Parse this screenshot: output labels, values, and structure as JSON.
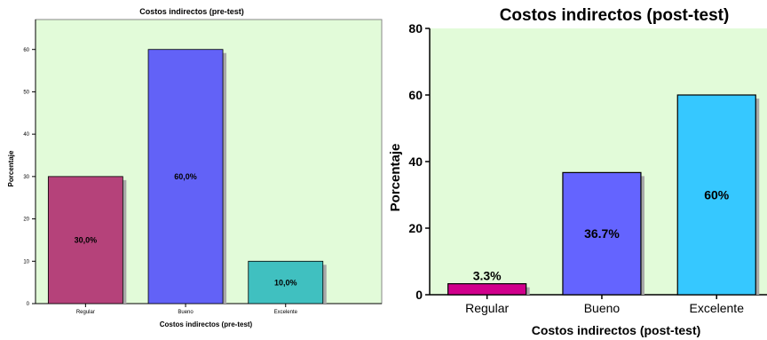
{
  "chart_data": [
    {
      "type": "bar",
      "title": "Costos indirectos (pre-test)",
      "xlabel": "Costos indirectos (pre-test)",
      "ylabel": "Porcentaje",
      "categories": [
        "Regular",
        "Bueno",
        "Excelente"
      ],
      "values": [
        30,
        60,
        10
      ],
      "data_labels": [
        "30,0%",
        "60,0%",
        "10,0%"
      ],
      "colors": [
        "#b5427a",
        "#6262f7",
        "#40c0c0"
      ],
      "ylim": [
        0,
        70
      ],
      "yticks": [
        0,
        10,
        20,
        30,
        40,
        50,
        60
      ],
      "background": "#e2fbd9",
      "grid": false,
      "legend": "none"
    },
    {
      "type": "bar",
      "title": "Costos indirectos (post-test)",
      "xlabel": "Costos indirectos (post-test)",
      "ylabel": "Porcentaje",
      "categories": [
        "Regular",
        "Bueno",
        "Excelente"
      ],
      "values": [
        3.3,
        36.7,
        60
      ],
      "data_labels": [
        "3.3%",
        "36.7%",
        "60%"
      ],
      "colors": [
        "#d0008c",
        "#6464ff",
        "#36c8ff"
      ],
      "ylim": [
        0,
        80
      ],
      "yticks": [
        0,
        20,
        40,
        60,
        80
      ],
      "background": "#e2fbd9",
      "grid": false,
      "legend": "none"
    }
  ]
}
